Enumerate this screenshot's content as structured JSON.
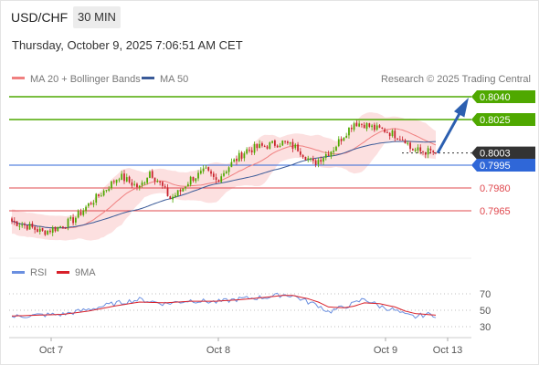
{
  "header": {
    "symbol": "USD/CHF",
    "timeframe": "30 MIN",
    "datetime": "Thursday, October 9, 2025 7:06:51 AM CET"
  },
  "legend": {
    "ma20_label": "MA 20 + Bollinger Bands",
    "ma50_label": "MA 50",
    "source": "Research © 2025 Trading Central",
    "rsi_label": "RSI",
    "ma9_label": "9MA"
  },
  "colors": {
    "green": "#4fa800",
    "blue": "#2f67d8",
    "red": "#e0484e",
    "dark": "#333333",
    "bullish_candle": "#4fa800",
    "bearish_candle": "#c8202a",
    "ma20": "#f08080",
    "ma50": "#3a5a98",
    "band_fill": "#fbd6d6",
    "rsi": "#6a8fe0",
    "ma9": "#d8202a",
    "arrow": "#2c5fb0"
  },
  "chart_data": [
    {
      "type": "candlestick",
      "title": "USD/CHF 30 MIN",
      "ylim": [
        0.795,
        0.805
      ],
      "x_ticks": [
        "Oct 7",
        "Oct 8",
        "Oct 9",
        "Oct 13"
      ],
      "levels": [
        {
          "value": 0.804,
          "label": "0.8040",
          "kind": "resistance"
        },
        {
          "value": 0.8025,
          "label": "0.8025",
          "kind": "resistance"
        },
        {
          "value": 0.8003,
          "label": "0.8003",
          "kind": "last_price"
        },
        {
          "value": 0.7995,
          "label": "0.7995",
          "kind": "pivot"
        },
        {
          "value": 0.798,
          "label": "0.7980",
          "kind": "support"
        },
        {
          "value": 0.7965,
          "label": "0.7965",
          "kind": "support"
        }
      ],
      "forecast_arrow": {
        "from": 0.8003,
        "to": 0.804
      },
      "close_anchors": [
        [
          0,
          0.7958
        ],
        [
          6,
          0.7955
        ],
        [
          12,
          0.7951
        ],
        [
          18,
          0.7954
        ],
        [
          24,
          0.7959
        ],
        [
          30,
          0.7969
        ],
        [
          36,
          0.7978
        ],
        [
          42,
          0.7988
        ],
        [
          50,
          0.798
        ],
        [
          54,
          0.7991
        ],
        [
          58,
          0.7983
        ],
        [
          62,
          0.7973
        ],
        [
          66,
          0.7978
        ],
        [
          70,
          0.7986
        ],
        [
          76,
          0.7991
        ],
        [
          80,
          0.7985
        ],
        [
          86,
          0.7996
        ],
        [
          92,
          0.8005
        ],
        [
          100,
          0.8008
        ],
        [
          106,
          0.801
        ],
        [
          112,
          0.8006
        ],
        [
          118,
          0.7996
        ],
        [
          122,
          0.8001
        ],
        [
          126,
          0.8006
        ],
        [
          130,
          0.8015
        ],
        [
          134,
          0.8023
        ],
        [
          138,
          0.8022
        ],
        [
          142,
          0.8019
        ],
        [
          146,
          0.8018
        ],
        [
          150,
          0.8015
        ],
        [
          154,
          0.8012
        ],
        [
          156,
          0.8006
        ],
        [
          160,
          0.8004
        ],
        [
          164,
          0.8004
        ],
        [
          166,
          0.8003
        ]
      ]
    },
    {
      "type": "line",
      "title": "RSI",
      "ylim": [
        20,
        80
      ],
      "y_ticks": [
        70,
        50,
        30
      ],
      "series": [
        {
          "name": "RSI",
          "points": [
            [
              0,
              42
            ],
            [
              10,
              44
            ],
            [
              20,
              45
            ],
            [
              30,
              51
            ],
            [
              40,
              58
            ],
            [
              50,
              63
            ],
            [
              60,
              58
            ],
            [
              70,
              62
            ],
            [
              80,
              60
            ],
            [
              90,
              64
            ],
            [
              100,
              66
            ],
            [
              106,
              69
            ],
            [
              110,
              68
            ],
            [
              116,
              60
            ],
            [
              120,
              56
            ],
            [
              124,
              48
            ],
            [
              130,
              54
            ],
            [
              134,
              58
            ],
            [
              138,
              64
            ],
            [
              144,
              55
            ],
            [
              150,
              50
            ],
            [
              154,
              44
            ],
            [
              158,
              42
            ],
            [
              162,
              45
            ],
            [
              166,
              44
            ]
          ]
        },
        {
          "name": "9MA",
          "points": [
            [
              0,
              43
            ],
            [
              10,
              44
            ],
            [
              20,
              45
            ],
            [
              30,
              49
            ],
            [
              40,
              55
            ],
            [
              50,
              60
            ],
            [
              60,
              59
            ],
            [
              70,
              61
            ],
            [
              80,
              61
            ],
            [
              90,
              63
            ],
            [
              100,
              66
            ],
            [
              106,
              68
            ],
            [
              110,
              68
            ],
            [
              116,
              64
            ],
            [
              120,
              60
            ],
            [
              124,
              54
            ],
            [
              130,
              53
            ],
            [
              134,
              55
            ],
            [
              138,
              59
            ],
            [
              144,
              58
            ],
            [
              150,
              54
            ],
            [
              154,
              49
            ],
            [
              158,
              46
            ],
            [
              162,
              45
            ],
            [
              166,
              44
            ]
          ]
        }
      ]
    }
  ]
}
